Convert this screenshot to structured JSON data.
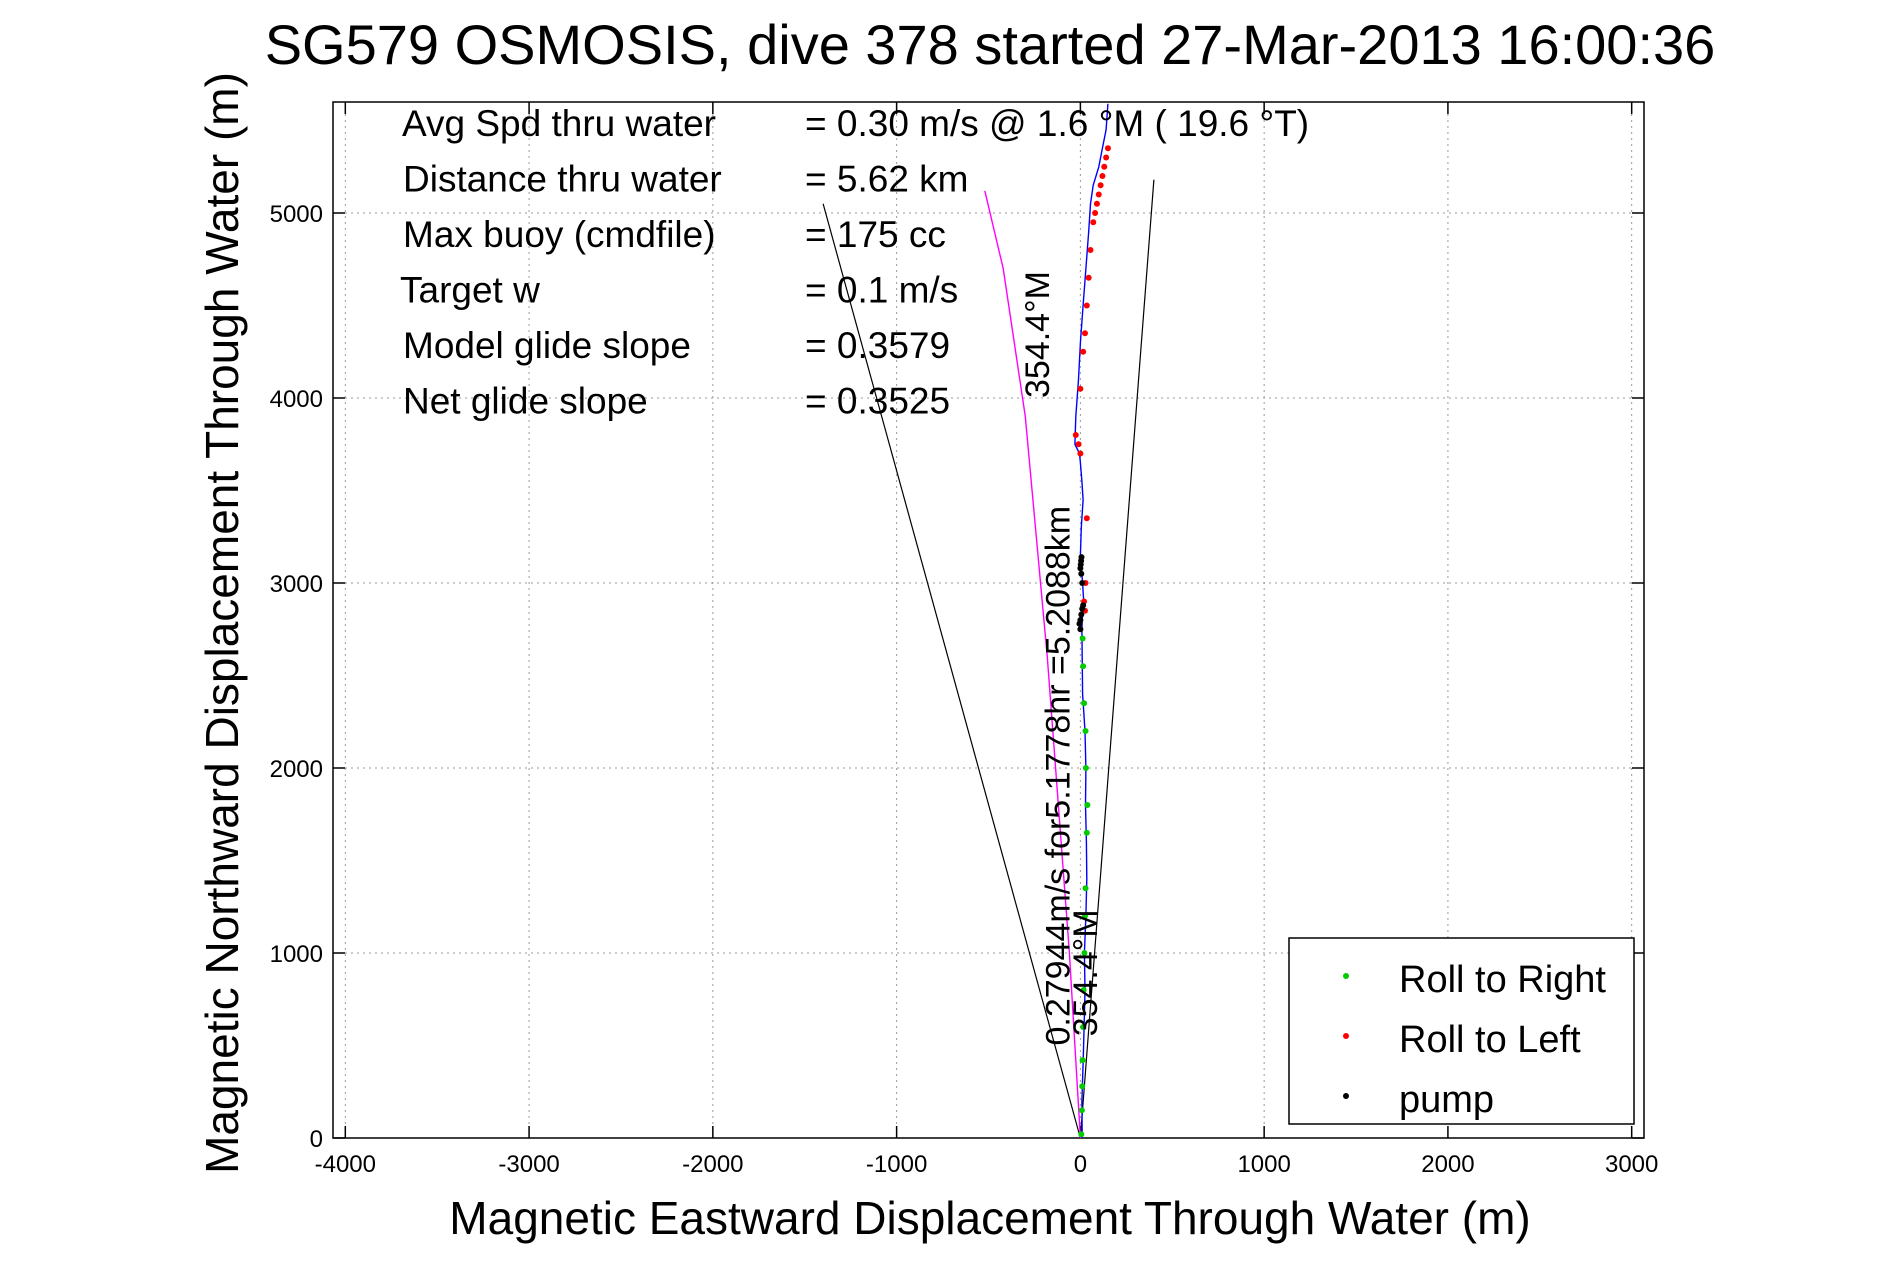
{
  "chart_data": {
    "type": "scatter",
    "title": "SG579 OSMOSIS, dive 378 started 27-Mar-2013 16:00:36",
    "xlabel": "Magnetic Eastward Displacement Through Water (m)",
    "ylabel": "Magnetic Northward Displacement Through Water (m)",
    "xlim": [
      -4067,
      3067
    ],
    "ylim": [
      0,
      5600
    ],
    "xticks": [
      -4000,
      -3000,
      -2000,
      -1000,
      0,
      1000,
      2000,
      3000
    ],
    "yticks": [
      0,
      1000,
      2000,
      3000,
      4000,
      5000
    ],
    "grid": true,
    "legend_position": "bottom-right",
    "stats": [
      {
        "label": "Avg Spd thru water",
        "value": "=  0.30 m/s @    1.6 °M ( 19.6 °T)"
      },
      {
        "label": "Distance thru water",
        "value": "=  5.62 km"
      },
      {
        "label": "Max buoy (cmdfile)",
        "value": "= 175 cc"
      },
      {
        "label": "Target w",
        "value": "= 0.1 m/s"
      },
      {
        "label": "Model glide slope",
        "value": "= 0.3579"
      },
      {
        "label": "Net glide slope",
        "value": "= 0.3525"
      }
    ],
    "annotations": [
      {
        "text": "0.27944m/s for5.1778hr =5.2088km",
        "x": -60,
        "y": 500,
        "rotation": -90
      },
      {
        "text": "354.4°M",
        "x": 90,
        "y": 550,
        "rotation": -90
      },
      {
        "text": "354.4°M",
        "x": -170,
        "y": 4000,
        "rotation": -90
      }
    ],
    "cone_lines": [
      {
        "name": "cone-left",
        "x": [
          0,
          -1400
        ],
        "y": [
          0,
          5050
        ]
      },
      {
        "name": "cone-right",
        "x": [
          0,
          400
        ],
        "y": [
          0,
          5180
        ]
      }
    ],
    "series": [
      {
        "name": "track",
        "role": "trajectory",
        "color": "#0000ff",
        "x": [
          10,
          8,
          15,
          20,
          25,
          22,
          30,
          35,
          33,
          28,
          30,
          25,
          12,
          10,
          8,
          12,
          18,
          12,
          0,
          5,
          15,
          8,
          0,
          -5,
          -30,
          -25,
          -10,
          0,
          15,
          30,
          45,
          55,
          70,
          100,
          120,
          140,
          150
        ],
        "y": [
          0,
          200,
          400,
          600,
          800,
          1000,
          1200,
          1400,
          1600,
          1800,
          2000,
          2200,
          2400,
          2600,
          2750,
          2850,
          2900,
          3000,
          3150,
          3300,
          3450,
          3550,
          3650,
          3700,
          3750,
          3900,
          4100,
          4300,
          4500,
          4700,
          4900,
          5050,
          5150,
          5250,
          5350,
          5450,
          5590
        ]
      },
      {
        "name": "depth-average",
        "role": "trajectory",
        "color": "#ff00ff",
        "x": [
          0,
          -60,
          -180,
          -300,
          -420,
          -520
        ],
        "y": [
          0,
          1000,
          2600,
          3900,
          4700,
          5120
        ]
      },
      {
        "name": "Roll to Right",
        "role": "markers",
        "color": "#00cc00",
        "x": [
          5,
          8,
          10,
          12,
          15,
          18,
          22,
          25,
          28,
          35,
          38,
          30,
          28,
          20,
          15,
          12
        ],
        "y": [
          20,
          150,
          280,
          420,
          600,
          800,
          1000,
          1200,
          1350,
          1650,
          1800,
          2000,
          2200,
          2350,
          2550,
          2700
        ]
      },
      {
        "name": "Roll to Left",
        "role": "markers",
        "color": "#ff0000",
        "x": [
          25,
          20,
          28,
          35,
          0,
          -10,
          -25,
          0,
          15,
          25,
          35,
          45,
          55,
          70,
          80,
          90,
          100,
          110,
          120,
          130,
          140,
          150
        ],
        "y": [
          2850,
          2900,
          3000,
          3350,
          3700,
          3750,
          3800,
          4050,
          4250,
          4350,
          4500,
          4650,
          4800,
          4950,
          5000,
          5050,
          5100,
          5150,
          5200,
          5250,
          5300,
          5350
        ]
      },
      {
        "name": "pump",
        "role": "markers",
        "color": "#000000",
        "x": [
          0,
          -5,
          0,
          5,
          10,
          15,
          10,
          5,
          0,
          2,
          4,
          6
        ],
        "y": [
          2750,
          2780,
          2800,
          2830,
          2860,
          2880,
          3000,
          3050,
          3080,
          3100,
          3120,
          3140
        ]
      }
    ]
  },
  "legend": {
    "items": [
      {
        "label": "Roll to Right",
        "color": "#00cc00"
      },
      {
        "label": "Roll to Left",
        "color": "#ff0000"
      },
      {
        "label": "pump",
        "color": "#000000"
      }
    ]
  }
}
